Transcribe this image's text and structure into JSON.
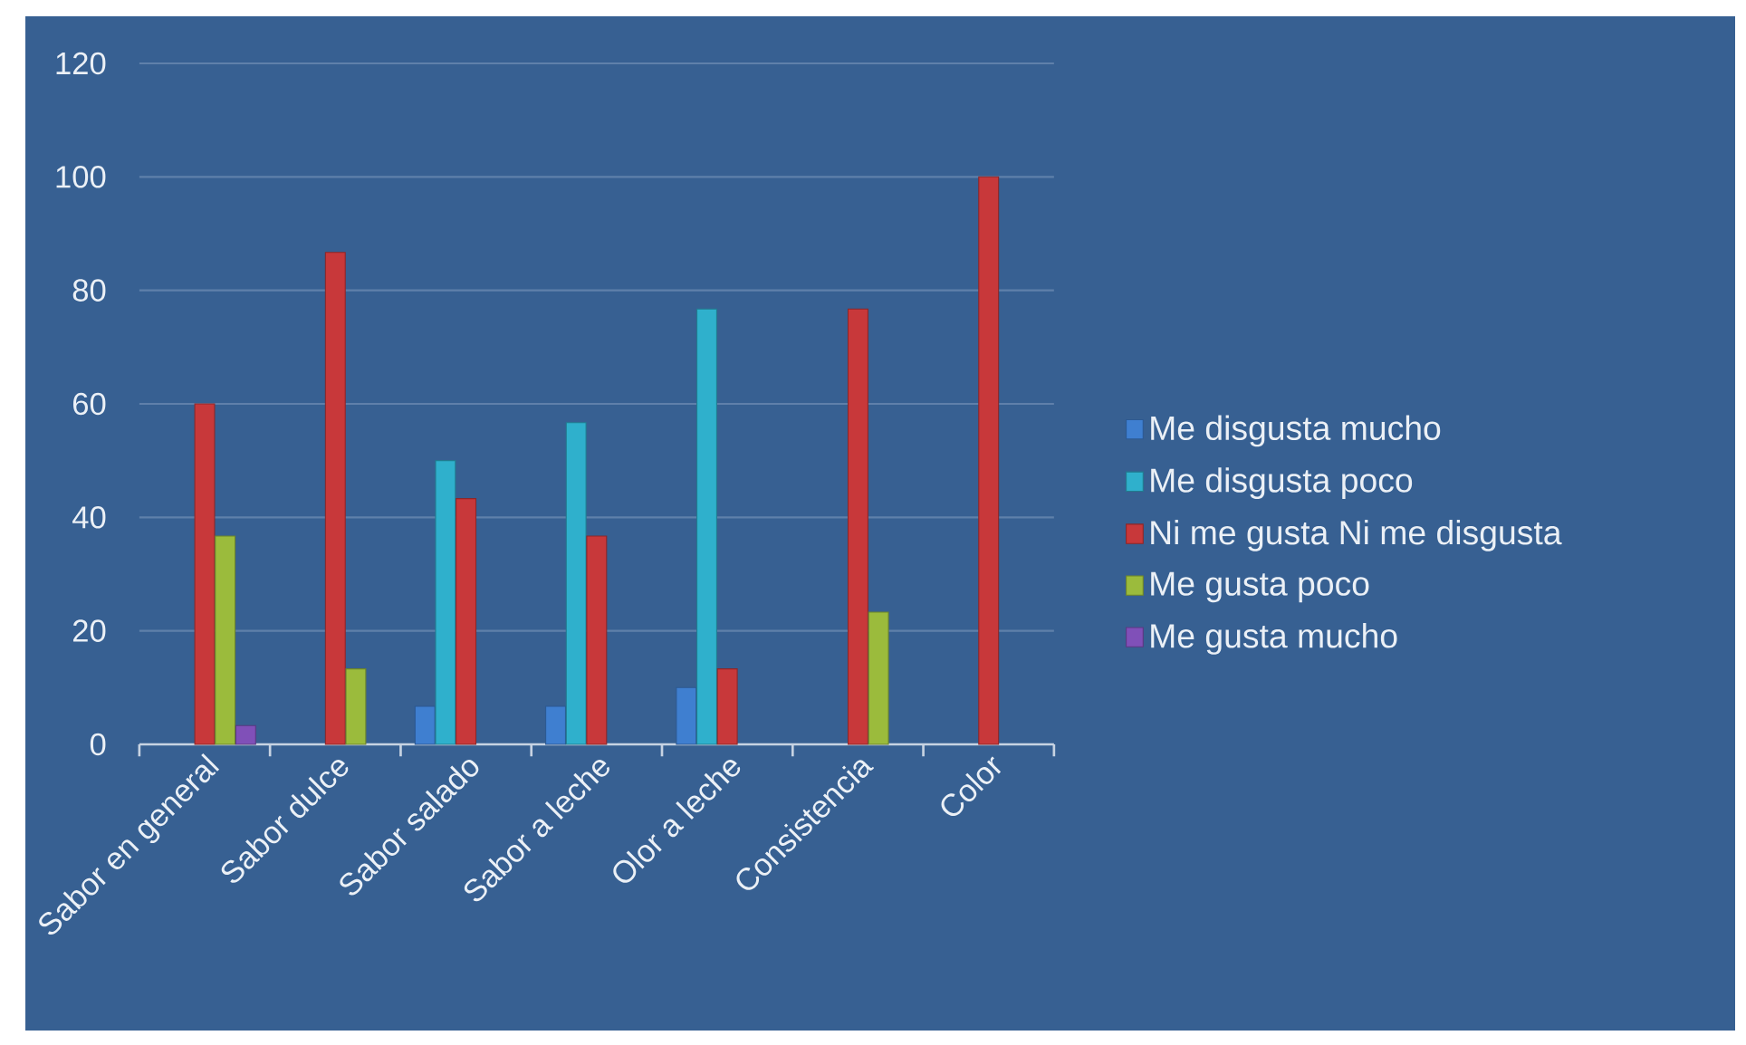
{
  "chart_data": {
    "type": "bar",
    "categories": [
      "Sabor en general",
      "Sabor dulce",
      "Sabor salado",
      "Sabor a leche",
      "Olor a leche",
      "Consistencia",
      "Color"
    ],
    "series": [
      {
        "name": "Me disgusta mucho",
        "color": "#3f7fd0",
        "values": [
          null,
          null,
          6.7,
          6.7,
          10,
          null,
          null
        ]
      },
      {
        "name": "Me disgusta poco",
        "color": "#2fb0cc",
        "values": [
          null,
          null,
          50,
          56.7,
          76.7,
          null,
          null
        ]
      },
      {
        "name": "Ni me gusta Ni me disgusta",
        "color": "#c8383a",
        "values": [
          60,
          86.7,
          43.3,
          36.7,
          13.3,
          76.7,
          100
        ]
      },
      {
        "name": "Me gusta poco",
        "color": "#9bbb3c",
        "values": [
          36.7,
          13.3,
          null,
          null,
          null,
          23.3,
          null
        ]
      },
      {
        "name": "Me gusta mucho",
        "color": "#8050b8",
        "values": [
          3.3,
          null,
          null,
          null,
          null,
          null,
          null
        ]
      }
    ],
    "ylim": [
      0,
      120
    ],
    "yticks": [
      0,
      20,
      40,
      60,
      80,
      100,
      120
    ],
    "grid": "y",
    "legend": "right"
  }
}
